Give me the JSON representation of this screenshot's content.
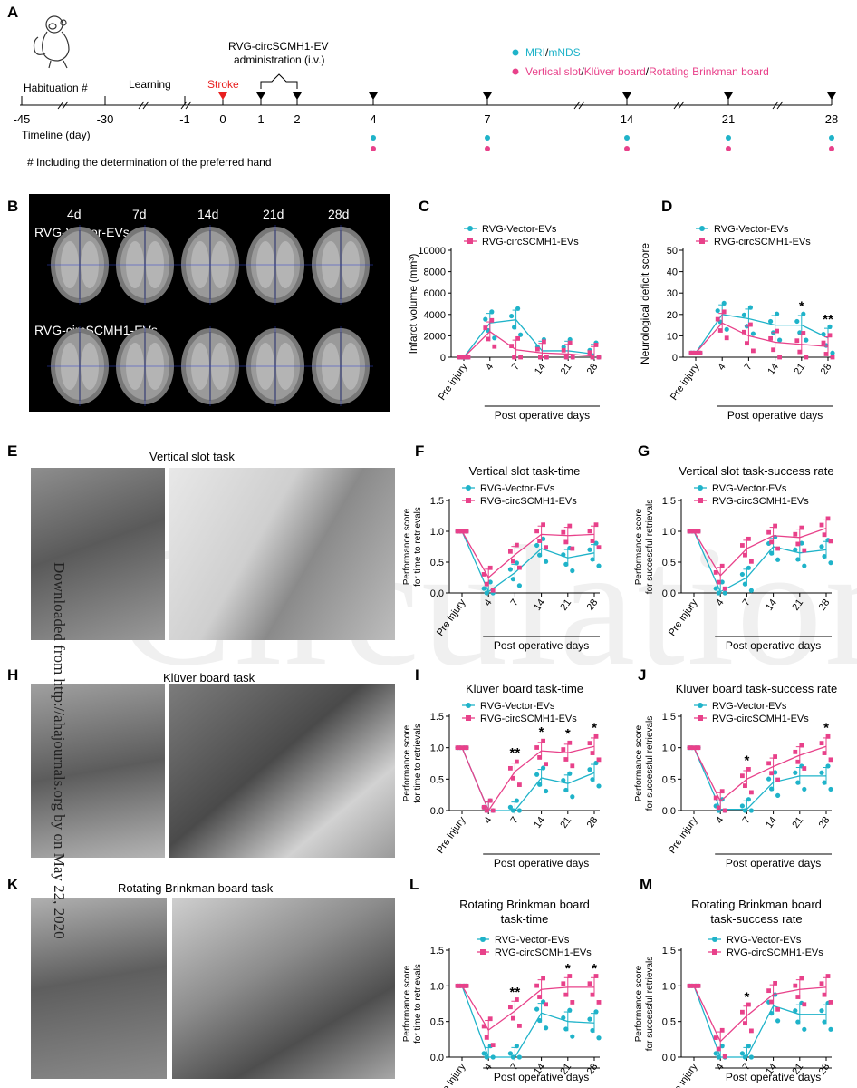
{
  "panel_letters": {
    "A": "A",
    "B": "B",
    "C": "C",
    "D": "D",
    "E": "E",
    "F": "F",
    "G": "G",
    "H": "H",
    "I": "I",
    "J": "J",
    "K": "K",
    "L": "L",
    "M": "M"
  },
  "timeline": {
    "habituation": "Habituation #",
    "learning": "Learning",
    "stroke": "Stroke",
    "admin_line1": "RVG-circSCMH1-EV",
    "admin_line2": "administration (i.v.)",
    "legend_mri_a": "MRI",
    "legend_mri_b": "/",
    "legend_mri_c": "mNDS",
    "legend_beh_a": "Vertical slot",
    "legend_beh_b": "/",
    "legend_beh_c": "Klüver board",
    "legend_beh_d": "/",
    "legend_beh_e": "Rotating Brinkman board",
    "ticks": [
      "-45",
      "-30",
      "-1",
      "0",
      "1",
      "2",
      "4",
      "7",
      "14",
      "21",
      "28"
    ],
    "axis_label": "Timeline (day)",
    "footnote": "# Including the determination of the preferred hand",
    "colors": {
      "cyan": "#1fb3c9",
      "pink": "#e8418a",
      "stroke": "#e81f1f"
    }
  },
  "mri": {
    "days": [
      "4d",
      "7d",
      "14d",
      "21d",
      "28d"
    ],
    "group1": "RVG-Vector-EVs",
    "group2": "RVG-circSCMH1-EVs"
  },
  "photos": {
    "vertical": "Vertical slot task",
    "kluver": "Klüver board task",
    "brinkman": "Rotating Brinkman board task"
  },
  "watermark": "Circulation",
  "vertical_text": "Downloaded from http://ahajournals.org by on May 22, 2020",
  "chart_data": [
    {
      "id": "C",
      "type": "line",
      "title": "",
      "ylabel": "Infarct volume (mm³)",
      "xlabel": "Post operative days",
      "categories": [
        "Pre injury",
        "4",
        "7",
        "14",
        "21",
        "28"
      ],
      "ylim": [
        0,
        10000
      ],
      "yticks": [
        "0",
        "2000",
        "4000",
        "6000",
        "8000",
        "10000"
      ],
      "legend": "top-left",
      "series": [
        {
          "name": "RVG-Vector-EVs",
          "values": [
            0,
            3200,
            3500,
            600,
            600,
            300
          ]
        },
        {
          "name": "RVG-circSCMH1-EVs",
          "values": [
            0,
            2400,
            700,
            400,
            300,
            100
          ]
        }
      ],
      "annotations": []
    },
    {
      "id": "D",
      "type": "line",
      "title": "",
      "ylabel": "Neurological deficit score",
      "xlabel": "Post operative days",
      "categories": [
        "Pre injury",
        "4",
        "7",
        "14",
        "21",
        "28"
      ],
      "ylim": [
        0,
        50
      ],
      "yticks": [
        "0",
        "10",
        "20",
        "30",
        "40",
        "50"
      ],
      "legend": "top-left",
      "series": [
        {
          "name": "RVG-Vector-EVs",
          "values": [
            2,
            20,
            18,
            15,
            15,
            9
          ]
        },
        {
          "name": "RVG-circSCMH1-EVs",
          "values": [
            2,
            16,
            10,
            7,
            6,
            5
          ]
        }
      ],
      "annotations": [
        {
          "cat": 4,
          "text": "*"
        },
        {
          "cat": 5,
          "text": "**"
        }
      ]
    },
    {
      "id": "F",
      "type": "line",
      "title": "Vertical slot task-time",
      "ylabel": "Performance score|for time to retrievals",
      "xlabel": "Post operative days",
      "categories": [
        "Pre injury",
        "4",
        "7",
        "14",
        "21",
        "28"
      ],
      "ylim": [
        0,
        1.5
      ],
      "yticks": [
        "0.0",
        "0.5",
        "1.0",
        "1.5"
      ],
      "legend": "top-left",
      "series": [
        {
          "name": "RVG-Vector-EVs",
          "values": [
            1.0,
            0.02,
            0.33,
            0.72,
            0.57,
            0.65
          ]
        },
        {
          "name": "RVG-circSCMH1-EVs",
          "values": [
            1.0,
            0.25,
            0.62,
            0.95,
            0.93,
            0.95
          ]
        }
      ],
      "annotations": []
    },
    {
      "id": "G",
      "type": "line",
      "title": "Vertical slot task-success rate",
      "ylabel": "Performance score|for successful retrievals",
      "xlabel": "Post operative days",
      "categories": [
        "Pre injury",
        "4",
        "7",
        "14",
        "21",
        "28"
      ],
      "ylim": [
        0,
        1.5
      ],
      "yticks": [
        "0.0",
        "0.5",
        "1.0",
        "1.5"
      ],
      "legend": "top-left",
      "series": [
        {
          "name": "RVG-Vector-EVs",
          "values": [
            1.0,
            0.02,
            0.25,
            0.75,
            0.65,
            0.7
          ]
        },
        {
          "name": "RVG-circSCMH1-EVs",
          "values": [
            1.0,
            0.28,
            0.72,
            0.93,
            0.9,
            1.05
          ]
        }
      ],
      "annotations": []
    },
    {
      "id": "I",
      "type": "line",
      "title": "Klüver board task-time",
      "ylabel": "Performance score|for time to retrievals",
      "xlabel": "Post operative days",
      "categories": [
        "Pre injury",
        "4",
        "7",
        "14",
        "21",
        "28"
      ],
      "ylim": [
        0,
        1.5
      ],
      "yticks": [
        "0.0",
        "0.5",
        "1.0",
        "1.5"
      ],
      "legend": "top-left",
      "series": [
        {
          "name": "RVG-Vector-EVs",
          "values": [
            1.0,
            0.0,
            0.0,
            0.52,
            0.43,
            0.6
          ]
        },
        {
          "name": "RVG-circSCMH1-EVs",
          "values": [
            1.0,
            0.0,
            0.62,
            0.95,
            0.92,
            1.02
          ]
        }
      ],
      "annotations": [
        {
          "cat": 2,
          "text": "**"
        },
        {
          "cat": 3,
          "text": "*"
        },
        {
          "cat": 4,
          "text": "*"
        },
        {
          "cat": 5,
          "text": "*"
        }
      ]
    },
    {
      "id": "J",
      "type": "line",
      "title": "Klüver board task-success rate",
      "ylabel": "Performance score|for successful retrievals",
      "xlabel": "Post operative days",
      "categories": [
        "Pre injury",
        "4",
        "7",
        "14",
        "21",
        "28"
      ],
      "ylim": [
        0,
        1.5
      ],
      "yticks": [
        "0.0",
        "0.5",
        "1.0",
        "1.5"
      ],
      "legend": "top-left",
      "series": [
        {
          "name": "RVG-Vector-EVs",
          "values": [
            1.0,
            0.02,
            0.02,
            0.45,
            0.55,
            0.55
          ]
        },
        {
          "name": "RVG-circSCMH1-EVs",
          "values": [
            1.0,
            0.15,
            0.5,
            0.7,
            0.88,
            1.02
          ]
        }
      ],
      "annotations": [
        {
          "cat": 2,
          "text": "*"
        },
        {
          "cat": 5,
          "text": "*"
        }
      ]
    },
    {
      "id": "L",
      "type": "line",
      "title": "Rotating Brinkman board|task-time",
      "ylabel": "Performance score|for time to retrievals",
      "xlabel": "Post operative days",
      "categories": [
        "Pre injury",
        "4",
        "7",
        "14",
        "21",
        "28"
      ],
      "ylim": [
        0,
        1.5
      ],
      "yticks": [
        "0.0",
        "0.5",
        "1.0",
        "1.5"
      ],
      "legend": "top-right",
      "series": [
        {
          "name": "RVG-Vector-EVs",
          "values": [
            1.0,
            0.0,
            0.0,
            0.62,
            0.5,
            0.48
          ]
        },
        {
          "name": "RVG-circSCMH1-EVs",
          "values": [
            1.0,
            0.38,
            0.65,
            0.95,
            0.98,
            0.98
          ]
        }
      ],
      "annotations": [
        {
          "cat": 2,
          "text": "**"
        },
        {
          "cat": 4,
          "text": "*"
        },
        {
          "cat": 5,
          "text": "*"
        }
      ]
    },
    {
      "id": "M",
      "type": "line",
      "title": "Rotating Brinkman board|task-success rate",
      "ylabel": "Performance score|for successful retrievals",
      "xlabel": "Post operative days",
      "categories": [
        "Pre injury",
        "4",
        "7",
        "14",
        "21",
        "28"
      ],
      "ylim": [
        0,
        1.5
      ],
      "yticks": [
        "0.0",
        "0.5",
        "1.0",
        "1.5"
      ],
      "legend": "top-right",
      "series": [
        {
          "name": "RVG-Vector-EVs",
          "values": [
            1.0,
            0.0,
            0.0,
            0.72,
            0.6,
            0.6
          ]
        },
        {
          "name": "RVG-circSCMH1-EVs",
          "values": [
            1.0,
            0.22,
            0.58,
            0.88,
            0.95,
            0.98
          ]
        }
      ],
      "annotations": [
        {
          "cat": 2,
          "text": "*"
        }
      ]
    }
  ]
}
